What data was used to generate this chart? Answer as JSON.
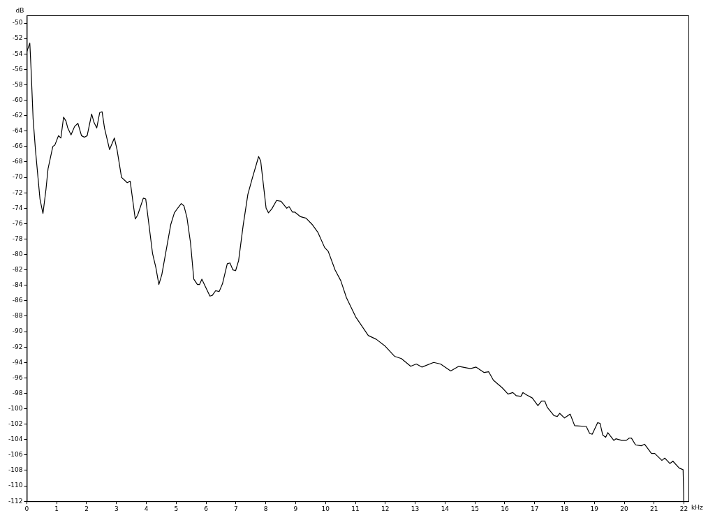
{
  "chart_data": {
    "type": "line",
    "xlabel": "kHz",
    "ylabel": "dB",
    "xlim": [
      0,
      22.15
    ],
    "ylim": [
      -112,
      -49
    ],
    "xticks": [
      0,
      1,
      2,
      3,
      4,
      5,
      6,
      7,
      8,
      9,
      10,
      11,
      12,
      13,
      14,
      15,
      16,
      17,
      18,
      19,
      20,
      21,
      22
    ],
    "yticks": [
      -50,
      -52,
      -54,
      -56,
      -58,
      -60,
      -62,
      -64,
      -66,
      -68,
      -70,
      -72,
      -74,
      -76,
      -78,
      -80,
      -82,
      -84,
      -86,
      -88,
      -90,
      -92,
      -94,
      -96,
      -98,
      -100,
      -102,
      -104,
      -106,
      -108,
      -110,
      -112
    ],
    "grid": false,
    "legend": false,
    "marker": "none",
    "line_style": "solid",
    "series": [
      {
        "color": "#000000",
        "x": [
          0,
          0.1,
          0.14,
          0.21,
          0.29,
          0.44,
          0.54,
          0.64,
          0.71,
          0.87,
          0.94,
          1.06,
          1.14,
          1.23,
          1.31,
          1.37,
          1.48,
          1.6,
          1.71,
          1.83,
          1.93,
          2.02,
          2.17,
          2.25,
          2.34,
          2.44,
          2.52,
          2.6,
          2.77,
          2.93,
          3.02,
          3.17,
          3.36,
          3.46,
          3.63,
          3.71,
          3.9,
          3.98,
          4.21,
          4.32,
          4.42,
          4.52,
          4.82,
          4.94,
          5.05,
          5.17,
          5.26,
          5.36,
          5.48,
          5.59,
          5.71,
          5.78,
          5.86,
          5.97,
          6.13,
          6.21,
          6.32,
          6.44,
          6.55,
          6.71,
          6.8,
          6.9,
          6.99,
          7.09,
          7.24,
          7.4,
          7.55,
          7.67,
          7.76,
          7.83,
          7.93,
          8.01,
          8.09,
          8.2,
          8.36,
          8.51,
          8.7,
          8.78,
          8.89,
          8.97,
          9.16,
          9.35,
          9.55,
          9.74,
          9.97,
          10.09,
          10.32,
          10.51,
          10.7,
          11.01,
          11.43,
          11.7,
          12,
          12.31,
          12.54,
          12.85,
          13.04,
          13.23,
          13.62,
          13.85,
          14.19,
          14.46,
          14.85,
          15.04,
          15.31,
          15.46,
          15.62,
          15.92,
          16.11,
          16.27,
          16.38,
          16.54,
          16.61,
          16.73,
          16.92,
          17.11,
          17.23,
          17.34,
          17.42,
          17.65,
          17.76,
          17.84,
          18,
          18.19,
          18.34,
          18.73,
          18.84,
          18.93,
          19.11,
          19.19,
          19.28,
          19.38,
          19.45,
          19.65,
          19.72,
          19.91,
          20.07,
          20.17,
          20.24,
          20.38,
          20.57,
          20.68,
          20.91,
          21.02,
          21.26,
          21.36,
          21.53,
          21.63,
          21.84,
          21.97,
          21.99,
          21.99
        ],
        "values": [
          -53.7,
          -52.6,
          -55.8,
          -62.4,
          -66.5,
          -72.8,
          -74.7,
          -71.6,
          -68.9,
          -66,
          -65.8,
          -64.6,
          -64.9,
          -62.2,
          -62.7,
          -63.6,
          -64.5,
          -63.4,
          -63,
          -64.6,
          -64.8,
          -64.6,
          -61.8,
          -62.9,
          -63.6,
          -61.6,
          -61.5,
          -63.6,
          -66.4,
          -64.9,
          -66.4,
          -70,
          -70.7,
          -70.5,
          -75.4,
          -74.9,
          -72.7,
          -72.8,
          -79.9,
          -81.7,
          -83.9,
          -82.6,
          -76.1,
          -74.6,
          -74,
          -73.4,
          -73.7,
          -75.2,
          -78.5,
          -83.2,
          -83.9,
          -83.9,
          -83.2,
          -84.1,
          -85.4,
          -85.3,
          -84.7,
          -84.8,
          -83.8,
          -81.2,
          -81.1,
          -82,
          -82.1,
          -80.8,
          -76.3,
          -72.2,
          -70.1,
          -68.5,
          -67.3,
          -67.9,
          -71.3,
          -74,
          -74.6,
          -74.1,
          -73,
          -73.1,
          -74,
          -73.8,
          -74.5,
          -74.5,
          -75.1,
          -75.3,
          -76.1,
          -77.1,
          -79.1,
          -79.6,
          -82,
          -83.4,
          -85.6,
          -88.1,
          -90.5,
          -91,
          -91.9,
          -93.2,
          -93.5,
          -94.5,
          -94.2,
          -94.6,
          -94,
          -94.2,
          -95.1,
          -94.5,
          -94.8,
          -94.6,
          -95.3,
          -95.2,
          -96.3,
          -97.3,
          -98.1,
          -97.9,
          -98.3,
          -98.4,
          -97.9,
          -98.2,
          -98.6,
          -99.6,
          -99,
          -99,
          -99.8,
          -100.9,
          -101,
          -100.6,
          -101.2,
          -100.7,
          -102.2,
          -102.3,
          -103.2,
          -103.3,
          -101.8,
          -101.9,
          -103.4,
          -103.7,
          -103.1,
          -104.1,
          -103.9,
          -104.1,
          -104.1,
          -103.8,
          -103.8,
          -104.7,
          -104.8,
          -104.6,
          -105.8,
          -105.8,
          -106.7,
          -106.4,
          -107.1,
          -106.8,
          -107.7,
          -107.9,
          -111.1,
          -112
        ]
      }
    ]
  }
}
